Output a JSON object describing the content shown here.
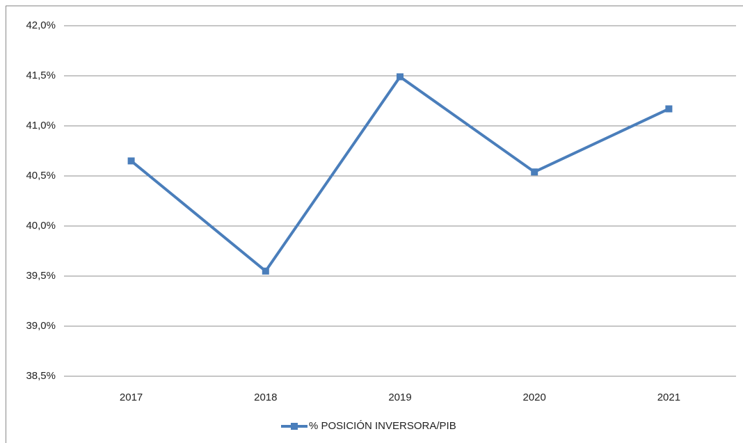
{
  "chart_data": {
    "type": "line",
    "categories": [
      "2017",
      "2018",
      "2019",
      "2020",
      "2021"
    ],
    "series": [
      {
        "name": "% POSICIÓN INVERSORA/PIB",
        "color": "#4a7ebb",
        "values": [
          40.65,
          39.55,
          41.49,
          40.54,
          41.17
        ]
      }
    ],
    "ylim": [
      38.5,
      42.0
    ],
    "yticks": [
      {
        "value": 38.5,
        "label": "38,5%"
      },
      {
        "value": 39.0,
        "label": "39,0%"
      },
      {
        "value": 39.5,
        "label": "39,5%"
      },
      {
        "value": 40.0,
        "label": "40,0%"
      },
      {
        "value": 40.5,
        "label": "40,5%"
      },
      {
        "value": 41.0,
        "label": "41,0%"
      },
      {
        "value": 41.5,
        "label": "41,5%"
      },
      {
        "value": 42.0,
        "label": "42,0%"
      }
    ],
    "grid": true,
    "legend": "bottom"
  }
}
